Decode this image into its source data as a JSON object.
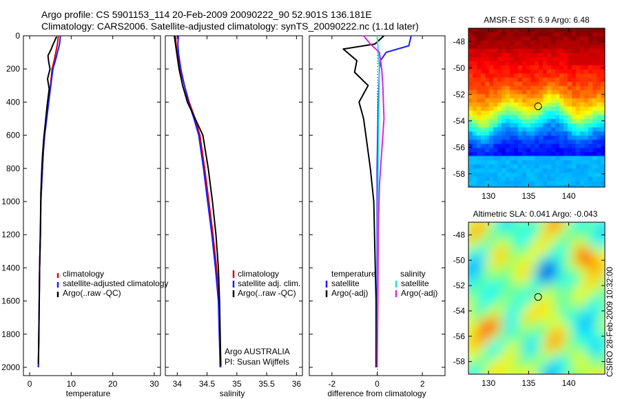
{
  "header": {
    "line1": "Argo profile: CS 5901153_114 20-Feb-2009 20090222_90 52.901S 136.181E",
    "line2": "Climatology: CARS2006. Satellite-adjusted climatology: synTS_20090222.nc (1.1d later)"
  },
  "footer": {
    "argo_label": "Argo AUSTRALIA",
    "pi_label": "PI: Susan Wijffels",
    "csiro_stamp": "CSIRO 28-Feb-2009 10:32:00"
  },
  "colors": {
    "climatology": "#e00000",
    "satellite": "#1a1aff",
    "argo": "#000000",
    "satellite_salinity": "#22e0e0",
    "argo_adj_salinity": "#e020e0"
  },
  "chart_data": [
    {
      "type": "line",
      "id": "temperature",
      "xlabel": "temperature",
      "xlim": [
        -1.5,
        31.5
      ],
      "ylim": [
        2050,
        0
      ],
      "y_reversed": true,
      "xticks": [
        0,
        10,
        20,
        30
      ],
      "yticks": [
        0,
        200,
        400,
        600,
        800,
        1000,
        1200,
        1400,
        1600,
        1800,
        2000
      ],
      "legend": [
        "climatology",
        "satellite-adjusted climatology",
        "Argo(..raw -QC)"
      ],
      "series": [
        {
          "name": "climatology",
          "color": "#e00000",
          "x": [
            6.9,
            6.7,
            6.3,
            5.9,
            5.4,
            5.0,
            4.5,
            4.1,
            3.6,
            3.3,
            3.1,
            2.9,
            2.7,
            2.6,
            2.4,
            2.3,
            2.2,
            2.1
          ],
          "y": [
            0,
            50,
            100,
            150,
            200,
            300,
            400,
            500,
            600,
            700,
            800,
            900,
            1000,
            1200,
            1400,
            1600,
            1800,
            2000
          ]
        },
        {
          "name": "satellite-adjusted climatology",
          "color": "#1a1aff",
          "x": [
            7.4,
            7.2,
            6.7,
            6.2,
            5.6,
            5.1,
            4.6,
            4.1,
            3.6,
            3.3,
            3.1,
            2.9,
            2.7,
            2.6,
            2.4,
            2.3,
            2.2,
            2.1
          ],
          "y": [
            0,
            50,
            100,
            150,
            200,
            300,
            400,
            500,
            600,
            700,
            800,
            900,
            1000,
            1200,
            1400,
            1600,
            1800,
            2000
          ]
        },
        {
          "name": "Argo(..raw -QC)",
          "color": "#000000",
          "x": [
            6.5,
            5.5,
            5.2,
            4.4,
            4.6,
            4.9,
            4.3,
            4.7,
            4.2,
            3.8,
            3.4,
            3.1,
            2.9,
            2.7,
            2.6,
            2.4,
            2.3,
            2.2,
            2.1
          ],
          "y": [
            5,
            60,
            80,
            120,
            160,
            200,
            260,
            320,
            420,
            520,
            620,
            720,
            820,
            950,
            1150,
            1400,
            1650,
            1850,
            1980
          ]
        }
      ]
    },
    {
      "type": "line",
      "id": "salinity",
      "xlabel": "salinity",
      "xlim": [
        33.8,
        36.1
      ],
      "ylim": [
        2050,
        0
      ],
      "y_reversed": true,
      "xticks": [
        34,
        34.5,
        35,
        35.5,
        36
      ],
      "legend": [
        "climatology",
        "satellite adj. clim.",
        "Argo(..raw -QC)"
      ],
      "series": [
        {
          "name": "climatology",
          "color": "#e00000",
          "x": [
            33.97,
            33.98,
            34.0,
            34.05,
            34.12,
            34.2,
            34.3,
            34.38,
            34.46,
            34.53,
            34.6,
            34.66,
            34.7,
            34.73
          ],
          "y": [
            0,
            50,
            100,
            200,
            300,
            400,
            500,
            600,
            800,
            1000,
            1200,
            1400,
            1600,
            2000
          ]
        },
        {
          "name": "satellite adj. clim.",
          "color": "#1a1aff",
          "x": [
            34.02,
            34.01,
            34.02,
            34.06,
            34.12,
            34.19,
            34.28,
            34.36,
            34.44,
            34.51,
            34.58,
            34.64,
            34.69,
            34.72
          ],
          "y": [
            0,
            50,
            100,
            200,
            300,
            400,
            500,
            600,
            800,
            1000,
            1200,
            1400,
            1600,
            2000
          ]
        },
        {
          "name": "Argo(..raw -QC)",
          "color": "#000000",
          "x": [
            33.95,
            33.97,
            33.99,
            34.03,
            34.09,
            34.17,
            34.3,
            34.43,
            34.52,
            34.59,
            34.65,
            34.69,
            34.71,
            34.73
          ],
          "y": [
            0,
            50,
            100,
            200,
            300,
            400,
            500,
            600,
            800,
            1000,
            1200,
            1400,
            1600,
            1990
          ]
        }
      ]
    },
    {
      "type": "line",
      "id": "difference",
      "xlabel": "difference from climatology",
      "xlim": [
        -3,
        3
      ],
      "ylim": [
        2050,
        0
      ],
      "y_reversed": true,
      "xticks": [
        -2,
        0,
        2
      ],
      "legend": [
        "temperature",
        "satellite",
        "Argo(-adj)",
        "salinity",
        "satellite",
        "Argo(-adj)"
      ],
      "series": [
        {
          "name": "satellite",
          "color": "#1a1aff",
          "x": [
            1.5,
            1.4,
            0.4,
            0.15,
            0.1,
            0.05,
            0.02,
            0.0,
            0.0,
            0.0,
            0.0
          ],
          "y": [
            0,
            60,
            100,
            150,
            200,
            400,
            600,
            800,
            1200,
            1600,
            2000
          ]
        },
        {
          "name": "Argo(-adj)",
          "color": "#000000",
          "x": [
            0.3,
            -0.1,
            -1.5,
            -0.9,
            -1.0,
            -0.4,
            -0.8,
            -0.6,
            -0.5,
            -0.3,
            -0.15,
            -0.1,
            -0.05,
            -0.05
          ],
          "y": [
            0,
            50,
            80,
            150,
            220,
            300,
            400,
            500,
            600,
            800,
            1000,
            1300,
            1600,
            2000
          ]
        },
        {
          "name": "satellite",
          "color": "#22e0e0",
          "x": [
            0.0,
            0.05,
            0.1,
            0.08,
            0.05,
            0.03,
            0.02,
            0.01,
            0.0
          ],
          "y": [
            0,
            100,
            200,
            400,
            700,
            1000,
            1400,
            1700,
            2000
          ]
        },
        {
          "name": "Argo(-adj)",
          "color": "#e020e0",
          "x": [
            -0.6,
            -0.3,
            0.1,
            0.2,
            0.25,
            0.3,
            0.2,
            0.1,
            0.05,
            0.03,
            0.0
          ],
          "y": [
            0,
            50,
            100,
            200,
            300,
            500,
            700,
            900,
            1200,
            1600,
            2000
          ]
        }
      ]
    },
    {
      "type": "heatmap",
      "id": "sst",
      "title": "AMSR-E SST: 6.9  Argo: 6.48",
      "xlim": [
        127.5,
        144.5
      ],
      "ylim": [
        -59,
        -47
      ],
      "xticks": [
        130,
        135,
        140
      ],
      "yticks": [
        -48,
        -50,
        -52,
        -54,
        -56,
        -58
      ],
      "marker": {
        "lon": 136.181,
        "lat": -52.901
      }
    },
    {
      "type": "heatmap",
      "id": "sla",
      "title": "Altimetric SLA: 0.041  Argo: -0.043",
      "xlim": [
        127.5,
        144.5
      ],
      "ylim": [
        -59,
        -47
      ],
      "xticks": [
        130,
        135,
        140
      ],
      "yticks": [
        -48,
        -50,
        -52,
        -54,
        -56,
        -58
      ],
      "marker": {
        "lon": 136.181,
        "lat": -52.901
      }
    }
  ]
}
